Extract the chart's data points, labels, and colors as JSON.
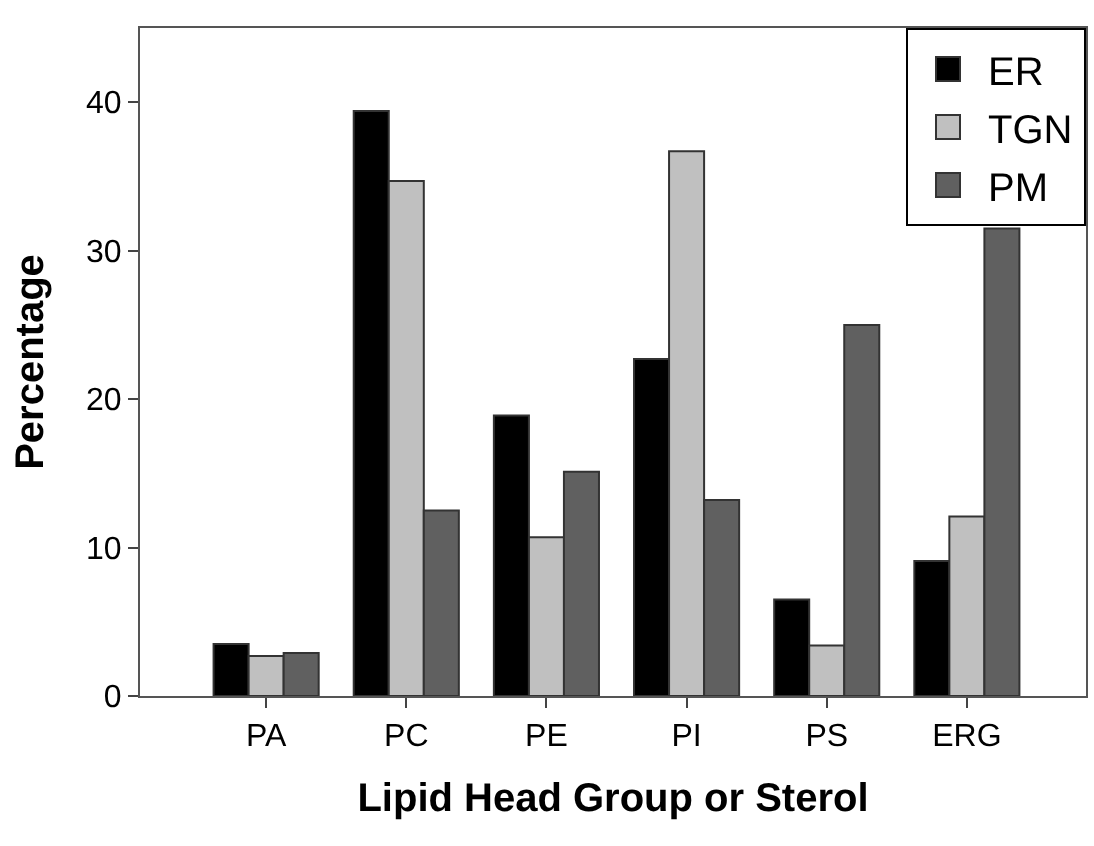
{
  "chart_data": {
    "type": "bar",
    "xlabel": "Lipid Head Group or Sterol",
    "ylabel": "Percentage",
    "categories": [
      "PA",
      "PC",
      "PE",
      "PI",
      "PS",
      "ERG"
    ],
    "series": [
      {
        "name": "ER",
        "color": "#000000",
        "values": [
          3.5,
          39.4,
          18.9,
          22.7,
          6.5,
          9.1
        ]
      },
      {
        "name": "TGN",
        "color": "#c0c0c0",
        "values": [
          2.7,
          34.7,
          10.7,
          36.7,
          3.4,
          12.1
        ]
      },
      {
        "name": "PM",
        "color": "#606060",
        "values": [
          2.9,
          12.5,
          15.1,
          13.2,
          25.0,
          31.5
        ]
      }
    ],
    "ylim": [
      0,
      45
    ],
    "yticks": [
      0,
      10,
      20,
      30,
      40
    ],
    "legend": "top right"
  }
}
